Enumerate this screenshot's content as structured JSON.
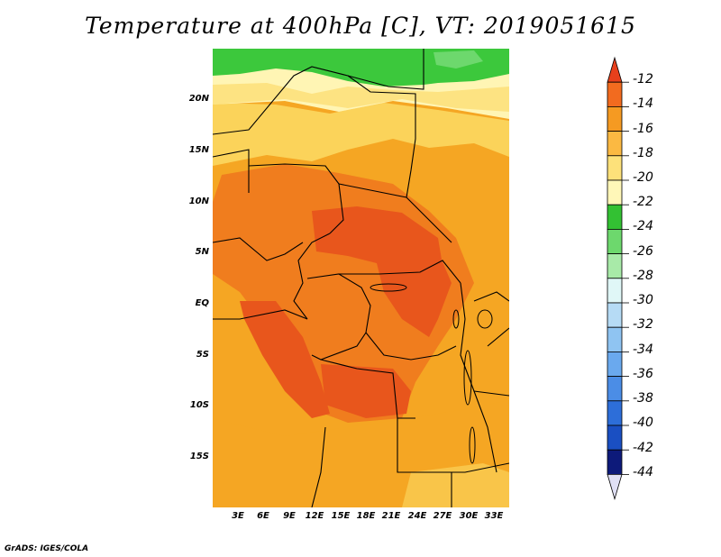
{
  "title": "Temperature at 400hPa [C], VT: 2019051615",
  "credit": "GrADS: IGES/COLA",
  "map": {
    "lat_ticks": [
      "20N",
      "15N",
      "10N",
      "5N",
      "EQ",
      "5S",
      "10S",
      "15S"
    ],
    "lon_ticks": [
      "3E",
      "6E",
      "9E",
      "12E",
      "15E",
      "18E",
      "21E",
      "24E",
      "27E",
      "30E",
      "33E"
    ],
    "fill_colors": {
      "green": "#3cc83c",
      "pale_yellow": "#fff5b4",
      "light_orange": "#fbd35a",
      "orange": "#f5a623",
      "dark_orange": "#f07d1e",
      "red_orange": "#e8561c"
    }
  },
  "colorbar": {
    "labels": [
      "-12",
      "-14",
      "-16",
      "-18",
      "-20",
      "-22",
      "-24",
      "-26",
      "-28",
      "-30",
      "-32",
      "-34",
      "-36",
      "-38",
      "-40",
      "-42",
      "-44"
    ],
    "colors": [
      "#e8401c",
      "#f26b1f",
      "#f59a22",
      "#fbb942",
      "#fde17a",
      "#fff7b8",
      "#33c133",
      "#6dd86d",
      "#a8eaa8",
      "#e0f7f7",
      "#b6dbf5",
      "#8fc4f2",
      "#6aa9ee",
      "#4b8de6",
      "#2d6ed9",
      "#1a4fc2",
      "#0d1a7a",
      "#e0e0f5"
    ]
  }
}
